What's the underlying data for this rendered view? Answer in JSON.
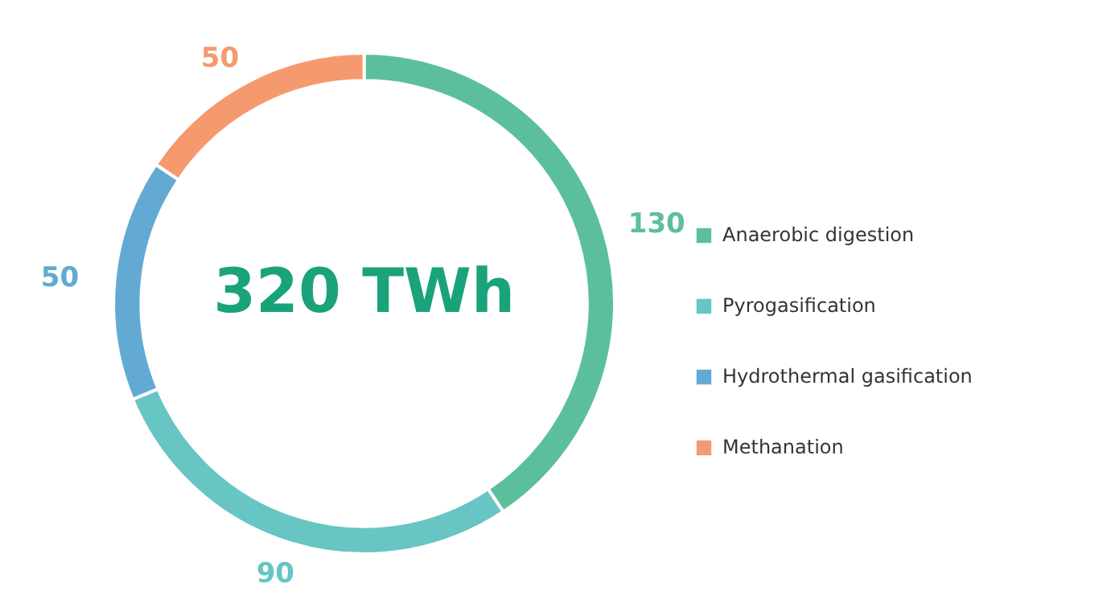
{
  "chart_data": {
    "type": "donut",
    "categories": [
      "Anaerobic digestion",
      "Pyrogasification",
      "Hydrothermal gasification",
      "Methanation"
    ],
    "values": [
      130,
      90,
      50,
      50
    ],
    "colors": [
      "#5cbf9b",
      "#67c5c4",
      "#62aad3",
      "#f59a6e"
    ],
    "data_labels": true,
    "legend": "right",
    "annotations": [
      "320 TWh"
    ]
  }
}
